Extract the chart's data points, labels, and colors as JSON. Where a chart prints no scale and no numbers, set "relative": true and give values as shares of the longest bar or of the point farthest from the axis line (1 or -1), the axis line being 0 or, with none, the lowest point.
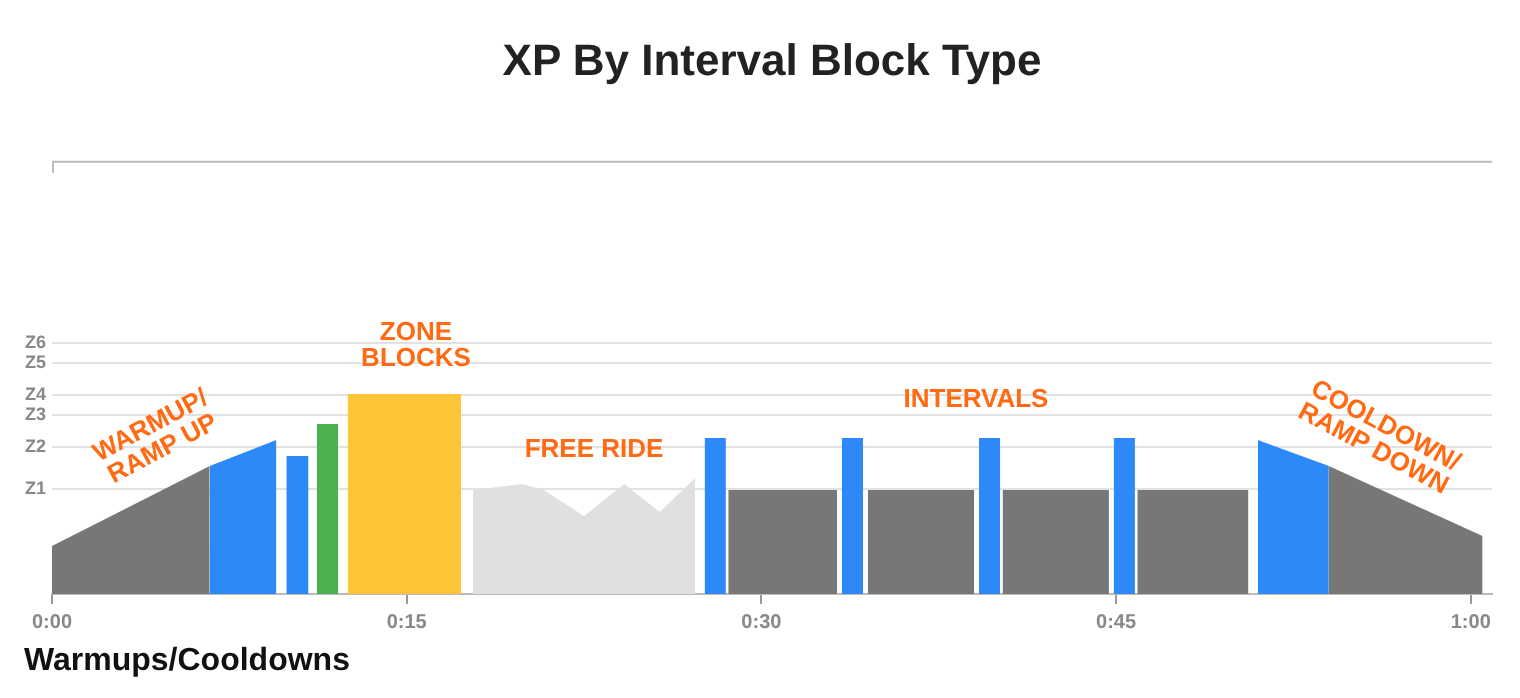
{
  "chart_data": {
    "type": "area",
    "title": "XP By Interval Block Type",
    "relative": true,
    "xlim": [
      0,
      60.9
    ],
    "xticks": [
      {
        "value": 0,
        "label": "0:00"
      },
      {
        "value": 15,
        "label": "0:15"
      },
      {
        "value": 30,
        "label": "0:30"
      },
      {
        "value": 45,
        "label": "0:45"
      },
      {
        "value": 60,
        "label": "1:00"
      }
    ],
    "legend": false,
    "ref_lines": [
      {
        "axis": "y",
        "value": 0.53,
        "label": "Z1"
      },
      {
        "axis": "y",
        "value": 0.74,
        "label": "Z2"
      },
      {
        "axis": "y",
        "value": 0.9,
        "label": "Z3"
      },
      {
        "axis": "y",
        "value": 1.0,
        "label": "Z4"
      },
      {
        "axis": "y",
        "value": 1.16,
        "label": "Z5"
      },
      {
        "axis": "y",
        "value": 1.26,
        "label": "Z6"
      }
    ],
    "series": [
      {
        "color": "#777777",
        "x": [
          0,
          0,
          6.67,
          6.67
        ],
        "values": [
          0,
          0.24,
          0.64,
          0
        ]
      },
      {
        "color": "#2d88f8",
        "x": [
          6.67,
          6.67,
          9.49,
          9.49
        ],
        "values": [
          0,
          0.64,
          0.77,
          0
        ]
      },
      {
        "color": "#2d88f8",
        "x": [
          9.91,
          9.91,
          10.85,
          10.85
        ],
        "values": [
          0,
          0.69,
          0.69,
          0
        ]
      },
      {
        "color": "#4caf50",
        "x": [
          11.2,
          11.2,
          12.1,
          12.1
        ],
        "values": [
          0,
          0.85,
          0.85,
          0
        ]
      },
      {
        "color": "#fdc537",
        "x": [
          12.5,
          12.5,
          17.3,
          17.3
        ],
        "values": [
          0,
          1.0,
          1.0,
          0
        ]
      },
      {
        "color": "#e0e0e0",
        "x": [
          17.8,
          17.8,
          19.9,
          20.8,
          22.5,
          24.2,
          25.7,
          27.2,
          27.2
        ],
        "values": [
          0,
          0.52,
          0.55,
          0.52,
          0.39,
          0.55,
          0.41,
          0.58,
          0
        ]
      },
      {
        "color": "#2d88f8",
        "x": [
          27.6,
          27.6,
          28.5,
          28.5
        ],
        "values": [
          0,
          0.78,
          0.78,
          0
        ]
      },
      {
        "color": "#777777",
        "x": [
          28.6,
          28.6,
          33.2,
          33.2
        ],
        "values": [
          0,
          0.52,
          0.52,
          0
        ]
      },
      {
        "color": "#2d88f8",
        "x": [
          33.4,
          33.4,
          34.3,
          34.3
        ],
        "values": [
          0,
          0.78,
          0.78,
          0
        ]
      },
      {
        "color": "#777777",
        "x": [
          34.5,
          34.5,
          39.0,
          39.0
        ],
        "values": [
          0,
          0.52,
          0.52,
          0
        ]
      },
      {
        "color": "#2d88f8",
        "x": [
          39.2,
          39.2,
          40.1,
          40.1
        ],
        "values": [
          0,
          0.78,
          0.78,
          0
        ]
      },
      {
        "color": "#777777",
        "x": [
          40.2,
          40.2,
          44.7,
          44.7
        ],
        "values": [
          0,
          0.52,
          0.52,
          0
        ]
      },
      {
        "color": "#2d88f8",
        "x": [
          44.9,
          44.9,
          45.8,
          45.8
        ],
        "values": [
          0,
          0.78,
          0.78,
          0
        ]
      },
      {
        "color": "#777777",
        "x": [
          45.9,
          45.9,
          50.6,
          50.6
        ],
        "values": [
          0,
          0.52,
          0.52,
          0
        ]
      },
      {
        "color": "#2d88f8",
        "x": [
          51.0,
          51.0,
          54.0,
          54.0
        ],
        "values": [
          0,
          0.77,
          0.64,
          0
        ]
      },
      {
        "color": "#777777",
        "x": [
          54.0,
          54.0,
          60.5,
          60.5
        ],
        "values": [
          0,
          0.64,
          0.29,
          0
        ]
      }
    ],
    "annotations": [
      "WARMUP/\nRAMP UP",
      "ZONE\nBLOCKS",
      "FREE RIDE",
      "INTERVALS",
      "COOLDOWN/\nRAMP DOWN",
      "Warmups/Cooldowns"
    ]
  }
}
